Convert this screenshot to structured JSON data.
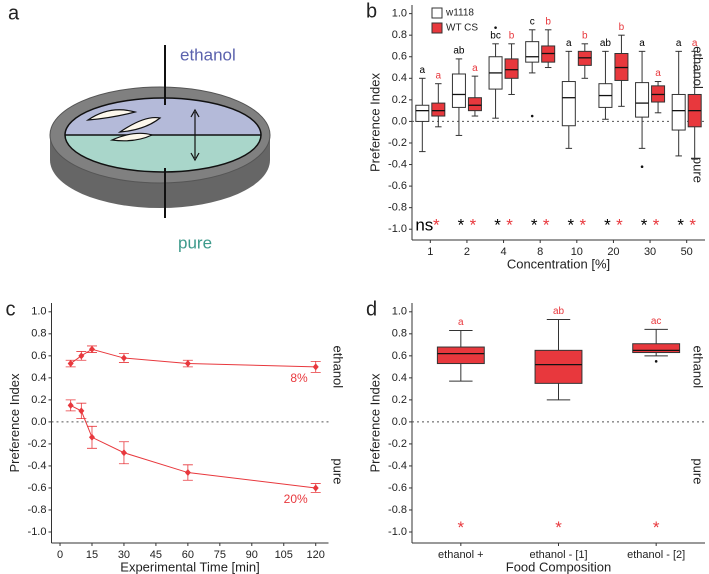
{
  "diagram": {
    "panel_label": "a",
    "top_label": "ethanol",
    "bottom_label": "pure"
  },
  "chart_data": [
    {
      "type": "box",
      "panel_label": "b",
      "y_label": "Preference Index",
      "x_label": "Concentration [%]",
      "side_labels": [
        "ethanol",
        "pure"
      ],
      "categories": [
        "1",
        "2",
        "4",
        "8",
        "10",
        "20",
        "30",
        "50"
      ],
      "ylim": [
        -1.1,
        1.08
      ],
      "yticks": [
        {
          "value": 1,
          "label": "1.0"
        },
        0.8,
        0.6,
        0.4,
        0.2,
        {
          "value": 0,
          "label": "0.0"
        },
        -0.2,
        -0.4,
        -0.6,
        -0.8,
        {
          "value": -1,
          "label": "-1.0"
        }
      ],
      "hline": 0,
      "legend": "top-left",
      "series": [
        {
          "name": "w1118",
          "color": "#ffffff",
          "text_color": "#000000",
          "boxes": [
            {
              "low": -0.28,
              "q1": 0.0,
              "median": 0.1,
              "q3": 0.15,
              "high": 0.4,
              "outliers": []
            },
            {
              "low": -0.13,
              "q1": 0.13,
              "median": 0.25,
              "q3": 0.44,
              "high": 0.58,
              "outliers": []
            },
            {
              "low": 0.03,
              "q1": 0.3,
              "median": 0.45,
              "q3": 0.6,
              "high": 0.72,
              "outliers": [
                0.87
              ]
            },
            {
              "low": 0.45,
              "q1": 0.55,
              "median": 0.6,
              "q3": 0.74,
              "high": 0.85,
              "outliers": [
                0.05
              ]
            },
            {
              "low": -0.25,
              "q1": -0.04,
              "median": 0.22,
              "q3": 0.37,
              "high": 0.65,
              "outliers": []
            },
            {
              "low": 0.02,
              "q1": 0.13,
              "median": 0.24,
              "q3": 0.35,
              "high": 0.65,
              "outliers": []
            },
            {
              "low": -0.25,
              "q1": 0.04,
              "median": 0.17,
              "q3": 0.36,
              "high": 0.65,
              "outliers": [
                -0.42
              ]
            },
            {
              "low": -0.32,
              "q1": -0.08,
              "median": 0.1,
              "q3": 0.25,
              "high": 0.65,
              "outliers": []
            }
          ],
          "letters": [
            "a",
            "ab",
            "bc",
            "c",
            "a",
            "ab",
            "a",
            "a"
          ],
          "significance": [
            "ns",
            "*",
            "*",
            "*",
            "*",
            "*",
            "*",
            "*"
          ]
        },
        {
          "name": "WT CS",
          "color": "#e8383d",
          "text_color": "#e8383d",
          "boxes": [
            {
              "low": -0.05,
              "q1": 0.05,
              "median": 0.1,
              "q3": 0.17,
              "high": 0.35,
              "outliers": []
            },
            {
              "low": 0.05,
              "q1": 0.1,
              "median": 0.15,
              "q3": 0.22,
              "high": 0.42,
              "outliers": []
            },
            {
              "low": 0.25,
              "q1": 0.4,
              "median": 0.48,
              "q3": 0.58,
              "high": 0.72,
              "outliers": []
            },
            {
              "low": 0.5,
              "q1": 0.55,
              "median": 0.63,
              "q3": 0.7,
              "high": 0.85,
              "outliers": []
            },
            {
              "low": 0.4,
              "q1": 0.52,
              "median": 0.59,
              "q3": 0.65,
              "high": 0.72,
              "outliers": []
            },
            {
              "low": 0.14,
              "q1": 0.38,
              "median": 0.5,
              "q3": 0.63,
              "high": 0.8,
              "outliers": []
            },
            {
              "low": 0.08,
              "q1": 0.18,
              "median": 0.25,
              "q3": 0.33,
              "high": 0.37,
              "outliers": []
            },
            {
              "low": -0.35,
              "q1": -0.05,
              "median": 0.1,
              "q3": 0.25,
              "high": 0.65,
              "outliers": []
            }
          ],
          "letters": [
            "a",
            "a",
            "b",
            "b",
            "b",
            "b",
            "a",
            "a"
          ],
          "significance": [
            "*",
            "*",
            "*",
            "*",
            "*",
            "*",
            "*",
            "*"
          ]
        }
      ]
    },
    {
      "type": "line",
      "panel_label": "c",
      "y_label": "Preference Index",
      "x_label": "Experimental Time [min]",
      "side_labels": [
        "ethanol",
        "pure"
      ],
      "x": [
        5,
        10,
        15,
        30,
        60,
        120
      ],
      "xlim": [
        -4,
        126
      ],
      "xticks": [
        0,
        15,
        30,
        45,
        60,
        75,
        90,
        105,
        120
      ],
      "ylim": [
        -1.1,
        1.08
      ],
      "yticks": [
        {
          "value": 1,
          "label": "1.0"
        },
        0.8,
        0.6,
        0.4,
        0.2,
        {
          "value": 0,
          "label": "0.0"
        },
        -0.2,
        -0.4,
        -0.6,
        -0.8,
        {
          "value": -1,
          "label": "-1.0"
        }
      ],
      "hline": 0,
      "series": [
        {
          "name": "8%",
          "color": "#e8383d",
          "values": [
            0.53,
            0.6,
            0.66,
            0.58,
            0.53,
            0.5
          ],
          "errors": [
            0.03,
            0.04,
            0.03,
            0.04,
            0.03,
            0.05
          ]
        },
        {
          "name": "20%",
          "color": "#e8383d",
          "values": [
            0.15,
            0.1,
            -0.14,
            -0.28,
            -0.46,
            -0.6
          ],
          "errors": [
            0.05,
            0.07,
            0.1,
            0.1,
            0.07,
            0.04
          ]
        }
      ]
    },
    {
      "type": "box",
      "panel_label": "d",
      "y_label": "Preference Index",
      "x_label": "Food Composition",
      "side_labels": [
        "ethanol",
        "pure"
      ],
      "categories": [
        "ethanol +",
        "ethanol - [1]",
        "ethanol - [2]"
      ],
      "ylim": [
        -1.1,
        1.08
      ],
      "yticks": [
        {
          "value": 1,
          "label": "1.0"
        },
        0.8,
        0.6,
        0.4,
        0.2,
        {
          "value": 0,
          "label": "0.0"
        },
        -0.2,
        -0.4,
        -0.6,
        -0.8,
        {
          "value": -1,
          "label": "-1.0"
        }
      ],
      "hline": 0,
      "series": [
        {
          "color": "#e8383d",
          "text_color": "#e8383d",
          "boxes": [
            {
              "low": 0.37,
              "q1": 0.53,
              "median": 0.62,
              "q3": 0.68,
              "high": 0.83,
              "outliers": []
            },
            {
              "low": 0.2,
              "q1": 0.35,
              "median": 0.52,
              "q3": 0.65,
              "high": 0.93,
              "outliers": []
            },
            {
              "low": 0.6,
              "q1": 0.63,
              "median": 0.65,
              "q3": 0.71,
              "high": 0.84,
              "outliers": [
                0.55
              ]
            }
          ],
          "letters": [
            "a",
            "ab",
            "ac"
          ],
          "significance": [
            "*",
            "*",
            "*"
          ]
        }
      ]
    }
  ]
}
